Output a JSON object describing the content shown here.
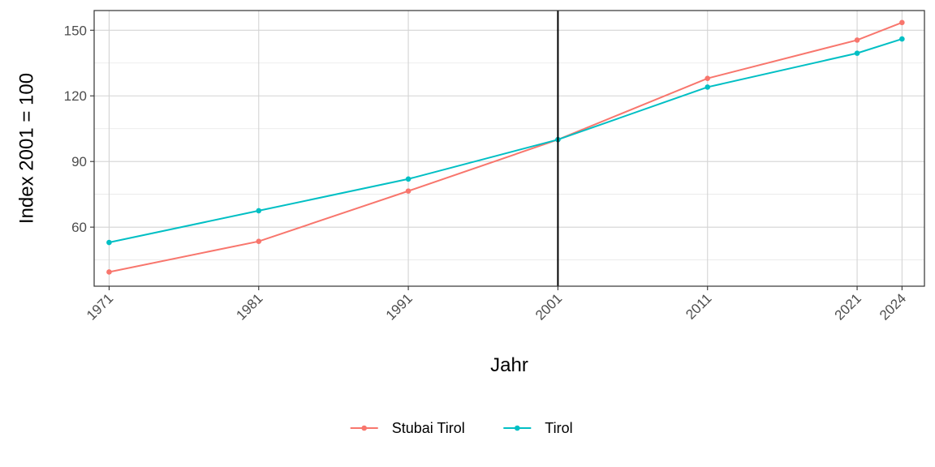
{
  "chart_data": {
    "type": "line",
    "title": "",
    "xlabel": "Jahr",
    "ylabel": "Index 2001 = 100",
    "x": [
      1971,
      1981,
      1991,
      2001,
      2011,
      2021,
      2024
    ],
    "x_tick_labels": [
      "1971",
      "1981",
      "1991",
      "2001",
      "2011",
      "2021",
      "2024"
    ],
    "xlim": [
      1970,
      2025.5
    ],
    "y_ticks": [
      60,
      90,
      120,
      150
    ],
    "ylim": [
      33,
      159
    ],
    "grid": true,
    "reference_line_x": 2001,
    "legend_position": "bottom",
    "series": [
      {
        "name": "Stubai Tirol",
        "color": "#F8766D",
        "values": [
          39.5,
          53.5,
          76.5,
          100,
          128,
          145.5,
          153.5
        ]
      },
      {
        "name": "Tirol",
        "color": "#00BFC4",
        "values": [
          53.0,
          67.5,
          82.0,
          100,
          124,
          139.5,
          146.0
        ]
      }
    ]
  }
}
